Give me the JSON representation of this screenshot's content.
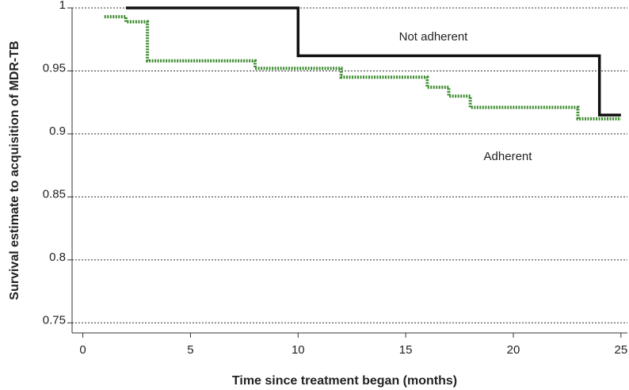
{
  "chart_data": {
    "type": "step",
    "xlabel": "Time since treatment began (months)",
    "ylabel": "Survival estimate to acquisition of MDR-TB",
    "xlim": [
      -0.5,
      25.3
    ],
    "ylim": [
      0.742,
      1.0
    ],
    "xticks": [
      0,
      5,
      10,
      15,
      20,
      25
    ],
    "yticks": [
      0.75,
      0.8,
      0.85,
      0.9,
      0.95,
      1
    ],
    "grid": true,
    "series": [
      {
        "name": "Not adherent",
        "color": "#111111",
        "style": "solid",
        "x": [
          2,
          10,
          10,
          24,
          24,
          25
        ],
        "values": [
          1,
          1,
          0.962,
          0.962,
          0.915,
          0.915
        ]
      },
      {
        "name": "Adherent",
        "color": "#3a8a2c",
        "style": "dotted",
        "x": [
          1,
          2,
          2,
          3,
          3,
          8,
          8,
          12,
          12,
          16,
          16,
          17,
          17,
          18,
          18,
          23,
          23,
          25
        ],
        "values": [
          0.993,
          0.993,
          0.989,
          0.989,
          0.958,
          0.958,
          0.952,
          0.952,
          0.945,
          0.945,
          0.937,
          0.937,
          0.93,
          0.93,
          0.921,
          0.921,
          0.912,
          0.912
        ]
      }
    ]
  }
}
